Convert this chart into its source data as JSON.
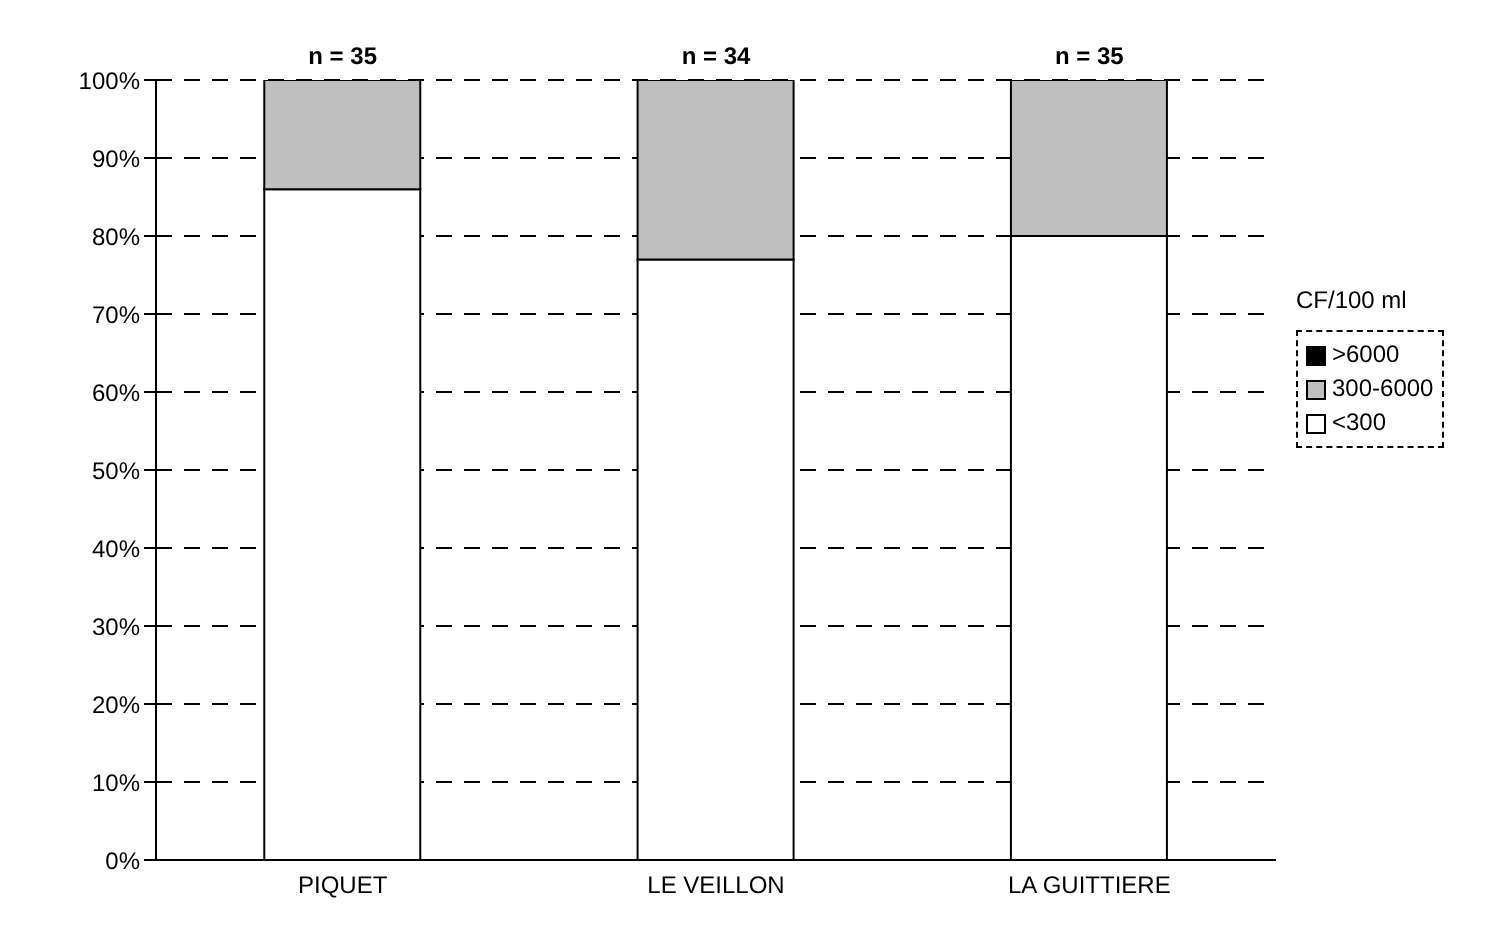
{
  "chart_data": {
    "type": "bar",
    "stacked": true,
    "categories": [
      "PIQUET",
      "LE VEILLON",
      "LA GUITTIERE"
    ],
    "series": [
      {
        "name": "<300",
        "color": "#ffffff",
        "values": [
          86,
          77,
          80
        ]
      },
      {
        "name": "300-6000",
        "color": "#bfbfbf",
        "values": [
          14,
          23,
          20
        ]
      },
      {
        "name": ">6000",
        "color": "#000000",
        "values": [
          0,
          0,
          0
        ]
      }
    ],
    "ylim": [
      0,
      100
    ],
    "yticks": [
      {
        "value": 0,
        "label": "0%"
      },
      {
        "value": 10,
        "label": "10%"
      },
      {
        "value": 20,
        "label": "20%"
      },
      {
        "value": 30,
        "label": "30%"
      },
      {
        "value": 40,
        "label": "40%"
      },
      {
        "value": 50,
        "label": "50%"
      },
      {
        "value": 60,
        "label": "60%"
      },
      {
        "value": 70,
        "label": "70%"
      },
      {
        "value": 80,
        "label": "80%"
      },
      {
        "value": 90,
        "label": "90%"
      },
      {
        "value": 100,
        "label": "100%"
      }
    ],
    "grid": "y",
    "line_style": "dashed",
    "legend": "right",
    "legend_title": "CF/100 ml",
    "annotations": [
      {
        "text": "n = 35",
        "x": "PIQUET",
        "y": 100
      },
      {
        "text": "n = 34",
        "x": "LE VEILLON",
        "y": 100
      },
      {
        "text": "n = 35",
        "x": "LA GUITTIERE",
        "y": 100
      }
    ]
  }
}
